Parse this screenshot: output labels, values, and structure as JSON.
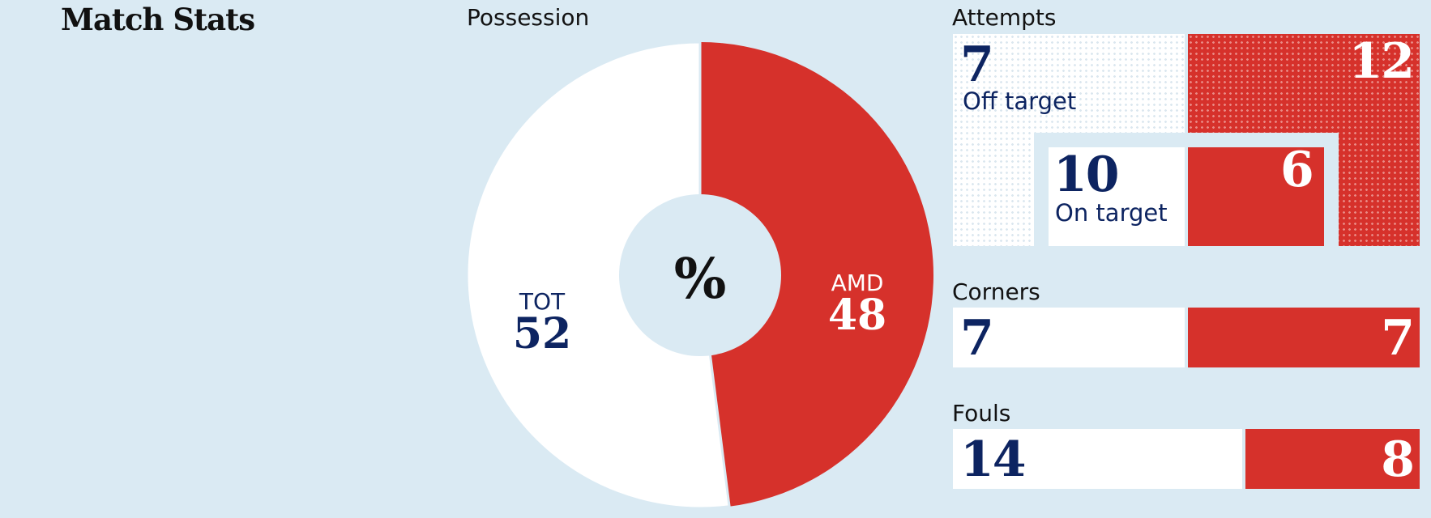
{
  "title": "Match Stats",
  "colors": {
    "home": "#ffffff",
    "away": "#d6312b",
    "text_home": "#0d2461",
    "background": "#daeaf3"
  },
  "possession": {
    "label": "Possession",
    "center_symbol": "%",
    "home_team": "TOT",
    "away_team": "AMD",
    "home_value": "52",
    "away_value": "48"
  },
  "attempts": {
    "label": "Attempts",
    "off_target_label": "Off target",
    "on_target_label": "On target",
    "home_off": "7",
    "away_off": "12",
    "home_on": "10",
    "away_on": "6"
  },
  "corners": {
    "label": "Corners",
    "home": "7",
    "away": "7"
  },
  "fouls": {
    "label": "Fouls",
    "home": "14",
    "away": "8"
  },
  "chart_data": [
    {
      "type": "pie",
      "title": "Possession",
      "categories": [
        "TOT",
        "AMD"
      ],
      "values": [
        52,
        48
      ],
      "unit": "%"
    },
    {
      "type": "bar",
      "title": "Attempts",
      "categories": [
        "Off target",
        "On target"
      ],
      "series": [
        {
          "name": "TOT",
          "values": [
            7,
            10
          ]
        },
        {
          "name": "AMD",
          "values": [
            12,
            6
          ]
        }
      ]
    },
    {
      "type": "bar",
      "title": "Corners",
      "categories": [
        "Corners"
      ],
      "series": [
        {
          "name": "TOT",
          "values": [
            7
          ]
        },
        {
          "name": "AMD",
          "values": [
            7
          ]
        }
      ]
    },
    {
      "type": "bar",
      "title": "Fouls",
      "categories": [
        "Fouls"
      ],
      "series": [
        {
          "name": "TOT",
          "values": [
            14
          ]
        },
        {
          "name": "AMD",
          "values": [
            8
          ]
        }
      ]
    }
  ]
}
